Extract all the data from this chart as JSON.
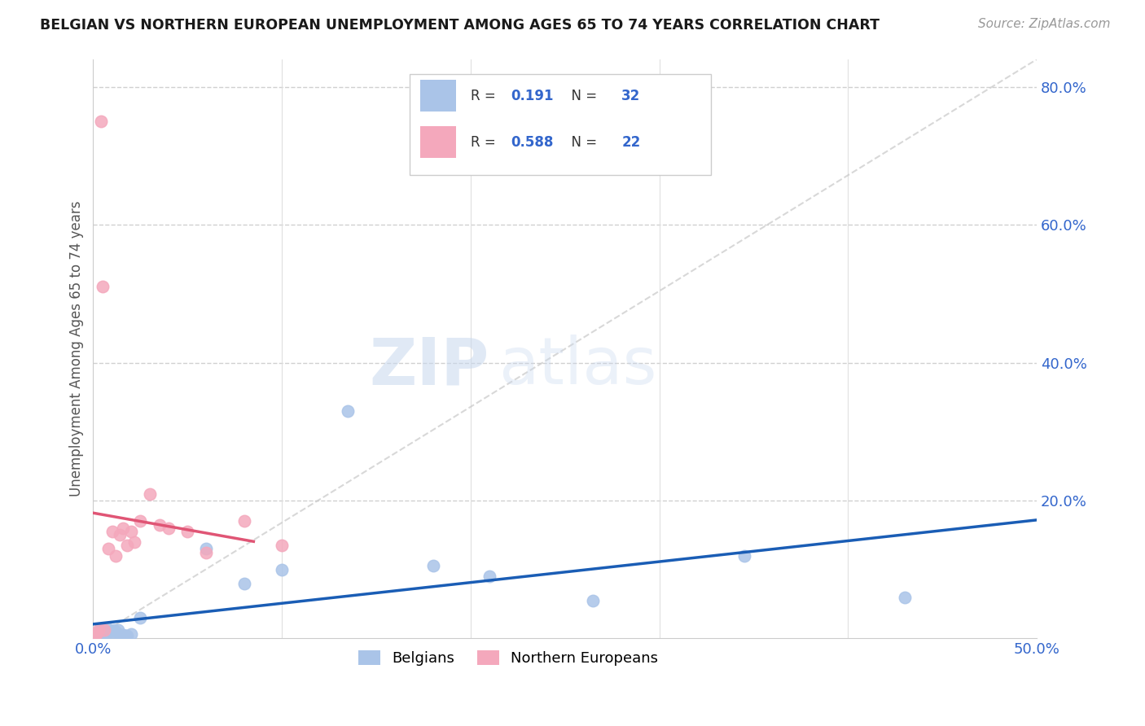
{
  "title": "BELGIAN VS NORTHERN EUROPEAN UNEMPLOYMENT AMONG AGES 65 TO 74 YEARS CORRELATION CHART",
  "source": "Source: ZipAtlas.com",
  "ylabel": "Unemployment Among Ages 65 to 74 years",
  "xlim": [
    0.0,
    0.5
  ],
  "ylim": [
    0.0,
    0.84
  ],
  "xticks": [
    0.0,
    0.1,
    0.2,
    0.3,
    0.4,
    0.5
  ],
  "xtick_labels": [
    "0.0%",
    "",
    "",
    "",
    "",
    "50.0%"
  ],
  "yticks_right": [
    0.0,
    0.2,
    0.4,
    0.6,
    0.8
  ],
  "ytick_right_labels": [
    "",
    "20.0%",
    "40.0%",
    "60.0%",
    "80.0%"
  ],
  "belgians_R": "0.191",
  "belgians_N": "32",
  "northern_R": "0.588",
  "northern_N": "22",
  "belgians_color": "#aac4e8",
  "northern_color": "#f4a8bc",
  "line_belgian_color": "#1a5db5",
  "line_northern_color": "#e05575",
  "watermark_zip": "ZIP",
  "watermark_atlas": "atlas",
  "belgians_x": [
    0.001,
    0.001,
    0.002,
    0.002,
    0.003,
    0.003,
    0.004,
    0.005,
    0.005,
    0.006,
    0.007,
    0.008,
    0.009,
    0.01,
    0.011,
    0.012,
    0.013,
    0.015,
    0.016,
    0.017,
    0.018,
    0.02,
    0.025,
    0.06,
    0.08,
    0.1,
    0.135,
    0.18,
    0.21,
    0.265,
    0.345,
    0.43
  ],
  "belgians_y": [
    0.003,
    0.005,
    0.006,
    0.008,
    0.006,
    0.01,
    0.012,
    0.005,
    0.008,
    0.012,
    0.01,
    0.013,
    0.01,
    0.008,
    0.012,
    0.01,
    0.012,
    0.005,
    0.005,
    0.004,
    0.004,
    0.006,
    0.03,
    0.13,
    0.08,
    0.1,
    0.33,
    0.105,
    0.09,
    0.055,
    0.12,
    0.06
  ],
  "northern_x": [
    0.001,
    0.002,
    0.003,
    0.004,
    0.005,
    0.006,
    0.008,
    0.01,
    0.012,
    0.014,
    0.016,
    0.018,
    0.02,
    0.022,
    0.025,
    0.03,
    0.035,
    0.04,
    0.05,
    0.06,
    0.08,
    0.1
  ],
  "northern_y": [
    0.005,
    0.008,
    0.012,
    0.75,
    0.51,
    0.012,
    0.13,
    0.155,
    0.12,
    0.15,
    0.16,
    0.135,
    0.155,
    0.14,
    0.17,
    0.21,
    0.165,
    0.16,
    0.155,
    0.125,
    0.17,
    0.135
  ]
}
